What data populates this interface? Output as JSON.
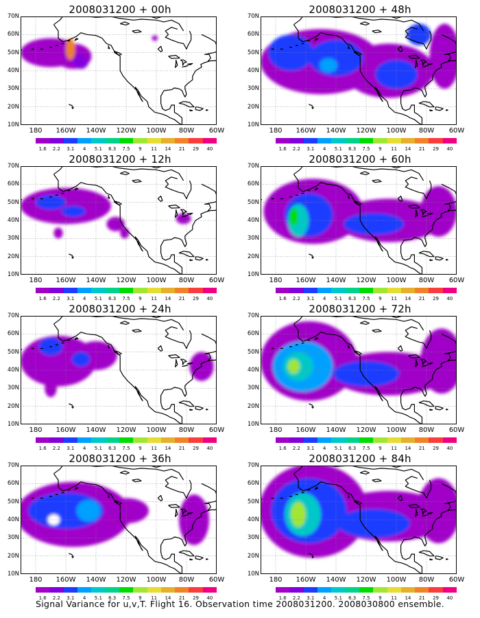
{
  "panels": [
    {
      "title": "2008031200 + 00h",
      "blobs": [
        {
          "cx": -170,
          "cy": 50,
          "rx": 20,
          "ry": 8,
          "c": 0
        },
        {
          "cx": -155,
          "cy": 48,
          "rx": 12,
          "ry": 7,
          "c": 0
        },
        {
          "cx": -150,
          "cy": 45,
          "rx": 5,
          "ry": 4,
          "c": 1
        },
        {
          "cx": -101,
          "cy": 58,
          "rx": 2,
          "ry": 1.5,
          "c": 0
        },
        {
          "cx": -157,
          "cy": 52,
          "rx": 3,
          "ry": 6,
          "c": 10
        }
      ]
    },
    {
      "title": "2008031200 + 48h",
      "blobs": [
        {
          "cx": -150,
          "cy": 45,
          "rx": 40,
          "ry": 18,
          "c": 0
        },
        {
          "cx": -105,
          "cy": 40,
          "rx": 30,
          "ry": 15,
          "c": 0
        },
        {
          "cx": -68,
          "cy": 48,
          "rx": 10,
          "ry": 18,
          "c": 0
        },
        {
          "cx": -170,
          "cy": 50,
          "rx": 15,
          "ry": 10,
          "c": 2
        },
        {
          "cx": -140,
          "cy": 47,
          "rx": 18,
          "ry": 10,
          "c": 2
        },
        {
          "cx": -100,
          "cy": 38,
          "rx": 14,
          "ry": 8,
          "c": 2
        },
        {
          "cx": -85,
          "cy": 60,
          "rx": 8,
          "ry": 6,
          "c": 2
        },
        {
          "cx": -145,
          "cy": 43,
          "rx": 6,
          "ry": 4,
          "c": 3
        }
      ]
    },
    {
      "title": "2008031200 + 12h",
      "blobs": [
        {
          "cx": -160,
          "cy": 48,
          "rx": 30,
          "ry": 10,
          "c": 0
        },
        {
          "cx": -127,
          "cy": 38,
          "rx": 6,
          "ry": 4,
          "c": 0
        },
        {
          "cx": -121,
          "cy": 33,
          "rx": 3,
          "ry": 3,
          "c": 0
        },
        {
          "cx": -82,
          "cy": 41,
          "rx": 5,
          "ry": 3,
          "c": 0
        },
        {
          "cx": -165,
          "cy": 33,
          "rx": 3,
          "ry": 3,
          "c": 0
        },
        {
          "cx": -170,
          "cy": 50,
          "rx": 10,
          "ry": 4,
          "c": 2
        },
        {
          "cx": -155,
          "cy": 45,
          "rx": 8,
          "ry": 3,
          "c": 2
        }
      ]
    },
    {
      "title": "2008031200 + 60h",
      "blobs": [
        {
          "cx": -155,
          "cy": 45,
          "rx": 33,
          "ry": 18,
          "c": 0
        },
        {
          "cx": -105,
          "cy": 40,
          "rx": 35,
          "ry": 12,
          "c": 0
        },
        {
          "cx": -72,
          "cy": 45,
          "rx": 12,
          "ry": 14,
          "c": 0
        },
        {
          "cx": -158,
          "cy": 43,
          "rx": 16,
          "ry": 12,
          "c": 2
        },
        {
          "cx": -115,
          "cy": 38,
          "rx": 20,
          "ry": 6,
          "c": 2
        },
        {
          "cx": -165,
          "cy": 40,
          "rx": 7,
          "ry": 9,
          "c": 4
        },
        {
          "cx": -168,
          "cy": 42,
          "rx": 3,
          "ry": 5,
          "c": 6
        }
      ]
    },
    {
      "title": "2008031200 + 24h",
      "blobs": [
        {
          "cx": -165,
          "cy": 45,
          "rx": 25,
          "ry": 14,
          "c": 0
        },
        {
          "cx": -140,
          "cy": 48,
          "rx": 14,
          "ry": 8,
          "c": 0
        },
        {
          "cx": -170,
          "cy": 30,
          "rx": 4,
          "ry": 5,
          "c": 0
        },
        {
          "cx": -70,
          "cy": 42,
          "rx": 8,
          "ry": 8,
          "c": 0
        },
        {
          "cx": -170,
          "cy": 53,
          "rx": 8,
          "ry": 5,
          "c": 2
        },
        {
          "cx": -150,
          "cy": 46,
          "rx": 6,
          "ry": 4,
          "c": 2
        }
      ]
    },
    {
      "title": "2008031200 + 72h",
      "blobs": [
        {
          "cx": -158,
          "cy": 45,
          "rx": 32,
          "ry": 22,
          "c": 0
        },
        {
          "cx": -105,
          "cy": 38,
          "rx": 38,
          "ry": 12,
          "c": 0
        },
        {
          "cx": -70,
          "cy": 45,
          "rx": 14,
          "ry": 18,
          "c": 0
        },
        {
          "cx": -162,
          "cy": 42,
          "rx": 20,
          "ry": 14,
          "c": 3
        },
        {
          "cx": -120,
          "cy": 38,
          "rx": 22,
          "ry": 7,
          "c": 2
        },
        {
          "cx": -165,
          "cy": 42,
          "rx": 10,
          "ry": 8,
          "c": 4
        },
        {
          "cx": -168,
          "cy": 42,
          "rx": 4,
          "ry": 4,
          "c": 7
        }
      ]
    },
    {
      "title": "2008031200 + 36h",
      "blobs": [
        {
          "cx": -155,
          "cy": 43,
          "rx": 38,
          "ry": 18,
          "c": 0
        },
        {
          "cx": -120,
          "cy": 45,
          "rx": 15,
          "ry": 7,
          "c": 0
        },
        {
          "cx": -75,
          "cy": 40,
          "rx": 10,
          "ry": 14,
          "c": 0
        },
        {
          "cx": -160,
          "cy": 45,
          "rx": 25,
          "ry": 10,
          "c": 2
        },
        {
          "cx": -145,
          "cy": 45,
          "rx": 8,
          "ry": 6,
          "c": 3
        },
        {
          "cx": -168,
          "cy": 40,
          "rx": 4,
          "ry": 3,
          "c": -1
        }
      ]
    },
    {
      "title": "2008031200 + 84h",
      "blobs": [
        {
          "cx": -155,
          "cy": 45,
          "rx": 36,
          "ry": 26,
          "c": 0
        },
        {
          "cx": -105,
          "cy": 42,
          "rx": 40,
          "ry": 14,
          "c": 0
        },
        {
          "cx": -72,
          "cy": 45,
          "rx": 14,
          "ry": 18,
          "c": 0
        },
        {
          "cx": -158,
          "cy": 45,
          "rx": 25,
          "ry": 18,
          "c": 2
        },
        {
          "cx": -115,
          "cy": 38,
          "rx": 24,
          "ry": 8,
          "c": 2
        },
        {
          "cx": -162,
          "cy": 43,
          "rx": 12,
          "ry": 12,
          "c": 4
        },
        {
          "cx": -165,
          "cy": 43,
          "rx": 5,
          "ry": 7,
          "c": 7
        }
      ]
    }
  ],
  "lat_labels": [
    "10N",
    "20N",
    "30N",
    "40N",
    "50N",
    "60N",
    "70N"
  ],
  "lon_labels": [
    "180",
    "160W",
    "140W",
    "120W",
    "100W",
    "80W",
    "60W"
  ],
  "colorbar_labels": [
    "1.6",
    "2.2",
    "3.1",
    "4",
    "5.1",
    "6.3",
    "7.5",
    "9",
    "11",
    "14",
    "21",
    "29",
    "40"
  ],
  "colorbar_colors": [
    "#a000c8",
    "#8200dc",
    "#1e3cff",
    "#00a0ff",
    "#00c8c8",
    "#00d28c",
    "#00dc00",
    "#a0e632",
    "#e6dc32",
    "#e6af2d",
    "#f08228",
    "#fa3c3c",
    "#f00082"
  ],
  "footer": "Signal Variance for u,v,T. Flight 16. Observation time 2008031200. 2008030800 ensemble."
}
